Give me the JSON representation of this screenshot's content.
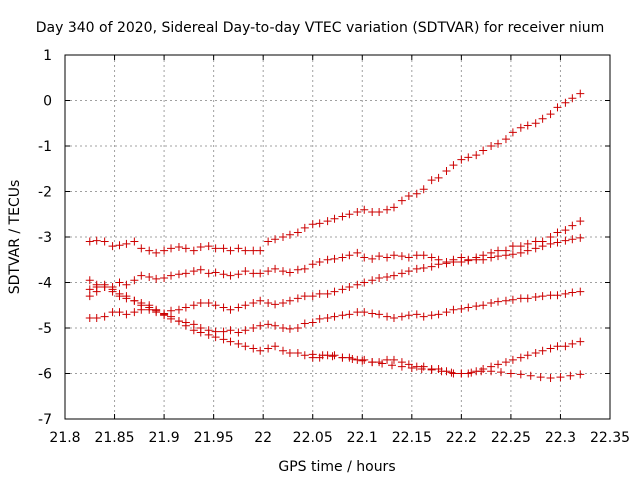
{
  "chart_data": {
    "type": "scatter",
    "title": "Day 340 of 2020, Sidereal Day-to-day VTEC variation (SDTVAR) for receiver nium",
    "xlabel": "GPS time / hours",
    "ylabel": "SDTVAR / TECUs",
    "xlim": [
      21.8,
      22.35
    ],
    "ylim": [
      -7,
      1
    ],
    "xticks": [
      "21.8",
      "21.85",
      "21.9",
      "21.95",
      "22",
      "22.05",
      "22.1",
      "22.15",
      "22.2",
      "22.25",
      "22.3",
      "22.35"
    ],
    "yticks": [
      "-7",
      "-6",
      "-5",
      "-4",
      "-3",
      "-2",
      "-1",
      "0",
      "1"
    ],
    "grid": true,
    "marker": "+",
    "color": "#cc0000",
    "series": [
      {
        "x": [
          21.825,
          21.832,
          21.84,
          21.848,
          21.855,
          21.862,
          21.87,
          21.877,
          21.885,
          21.892,
          21.9,
          21.907,
          21.915,
          21.922,
          21.93,
          21.937,
          21.945,
          21.952,
          21.96,
          21.967,
          21.975,
          21.982,
          21.99,
          21.997,
          22.005,
          22.012,
          22.02,
          22.027,
          22.035,
          22.042,
          22.05,
          22.057,
          22.065,
          22.072,
          22.08,
          22.087,
          22.095,
          22.102,
          22.11,
          22.117,
          22.125,
          22.132,
          22.14,
          22.147,
          22.155,
          22.162,
          22.17,
          22.177,
          22.185,
          22.192,
          22.2,
          22.207,
          22.215,
          22.222,
          22.23,
          22.237,
          22.245,
          22.252,
          22.26,
          22.267,
          22.275,
          22.282,
          22.29,
          22.297,
          22.305,
          22.312,
          22.32
        ],
        "y": [
          -3.1,
          -3.08,
          -3.1,
          -3.2,
          -3.18,
          -3.15,
          -3.1,
          -3.25,
          -3.3,
          -3.35,
          -3.3,
          -3.25,
          -3.22,
          -3.25,
          -3.3,
          -3.22,
          -3.2,
          -3.25,
          -3.25,
          -3.3,
          -3.25,
          -3.3,
          -3.3,
          -3.3,
          -3.1,
          -3.05,
          -3.0,
          -2.95,
          -2.9,
          -2.8,
          -2.72,
          -2.7,
          -2.65,
          -2.6,
          -2.55,
          -2.5,
          -2.45,
          -2.4,
          -2.45,
          -2.45,
          -2.4,
          -2.35,
          -2.2,
          -2.1,
          -2.05,
          -1.95,
          -1.75,
          -1.7,
          -1.55,
          -1.42,
          -1.3,
          -1.25,
          -1.2,
          -1.1,
          -1.0,
          -0.95,
          -0.85,
          -0.7,
          -0.6,
          -0.55,
          -0.5,
          -0.4,
          -0.3,
          -0.15,
          -0.05,
          0.05,
          0.15
        ]
      },
      {
        "x": [
          21.825,
          21.832,
          21.84,
          21.848,
          21.855,
          21.862,
          21.87,
          21.877,
          21.885,
          21.892,
          21.9,
          21.907,
          21.915,
          21.922,
          21.93,
          21.937,
          21.945,
          21.952,
          21.96,
          21.967,
          21.975,
          21.982,
          21.99,
          21.997,
          22.005,
          22.012,
          22.02,
          22.027,
          22.035,
          22.042,
          22.05,
          22.057,
          22.065,
          22.072,
          22.08,
          22.087,
          22.095,
          22.102,
          22.11,
          22.117,
          22.125,
          22.132,
          22.14,
          22.147,
          22.155,
          22.162,
          22.17,
          22.177,
          22.185,
          22.192,
          22.2,
          22.207,
          22.215,
          22.222,
          22.23,
          22.237,
          22.245,
          22.252,
          22.26,
          22.267,
          22.275,
          22.282,
          22.29,
          22.297,
          22.305,
          22.312,
          22.32
        ],
        "y": [
          -4.15,
          -4.1,
          -4.05,
          -4.1,
          -4.0,
          -4.05,
          -3.95,
          -3.85,
          -3.88,
          -3.92,
          -3.9,
          -3.85,
          -3.82,
          -3.8,
          -3.75,
          -3.72,
          -3.8,
          -3.78,
          -3.82,
          -3.85,
          -3.82,
          -3.75,
          -3.8,
          -3.8,
          -3.75,
          -3.7,
          -3.75,
          -3.78,
          -3.72,
          -3.7,
          -3.6,
          -3.55,
          -3.5,
          -3.48,
          -3.45,
          -3.4,
          -3.35,
          -3.45,
          -3.48,
          -3.42,
          -3.45,
          -3.4,
          -3.42,
          -3.45,
          -3.4,
          -3.4,
          -3.45,
          -3.5,
          -3.55,
          -3.5,
          -3.45,
          -3.5,
          -3.45,
          -3.4,
          -3.35,
          -3.3,
          -3.3,
          -3.2,
          -3.2,
          -3.15,
          -3.1,
          -3.1,
          -3.0,
          -2.9,
          -2.85,
          -2.75,
          -2.65
        ]
      },
      {
        "x": [
          21.825,
          21.832,
          21.84,
          21.848,
          21.855,
          21.862,
          21.87,
          21.877,
          21.885,
          21.892,
          21.9,
          21.907,
          21.915,
          21.922,
          21.93,
          21.937,
          21.945,
          21.952,
          21.96,
          21.967,
          21.975,
          21.982,
          21.99,
          21.997,
          22.005,
          22.012,
          22.02,
          22.027,
          22.035,
          22.042,
          22.05,
          22.057,
          22.065,
          22.072,
          22.08,
          22.087,
          22.095,
          22.102,
          22.11,
          22.117,
          22.125,
          22.132,
          22.14,
          22.147,
          22.155,
          22.162,
          22.17,
          22.177,
          22.185,
          22.192,
          22.2,
          22.207,
          22.215,
          22.222,
          22.23,
          22.237,
          22.245,
          22.252,
          22.26,
          22.267,
          22.275,
          22.282,
          22.29,
          22.297,
          22.305,
          22.312,
          22.32
        ],
        "y": [
          -4.3,
          -4.2,
          -4.1,
          -4.2,
          -4.3,
          -4.35,
          -4.4,
          -4.45,
          -4.5,
          -4.6,
          -4.68,
          -4.62,
          -4.6,
          -4.55,
          -4.5,
          -4.45,
          -4.45,
          -4.5,
          -4.55,
          -4.6,
          -4.55,
          -4.5,
          -4.45,
          -4.4,
          -4.45,
          -4.48,
          -4.45,
          -4.4,
          -4.35,
          -4.3,
          -4.3,
          -4.25,
          -4.25,
          -4.2,
          -4.15,
          -4.1,
          -4.05,
          -4.0,
          -3.95,
          -3.9,
          -3.88,
          -3.85,
          -3.8,
          -3.75,
          -3.7,
          -3.68,
          -3.65,
          -3.6,
          -3.58,
          -3.55,
          -3.55,
          -3.52,
          -3.5,
          -3.5,
          -3.45,
          -3.42,
          -3.4,
          -3.38,
          -3.35,
          -3.3,
          -3.25,
          -3.2,
          -3.15,
          -3.12,
          -3.08,
          -3.05,
          -3.02
        ]
      },
      {
        "x": [
          21.825,
          21.832,
          21.84,
          21.848,
          21.855,
          21.862,
          21.87,
          21.877,
          21.885,
          21.892,
          21.9,
          21.907,
          21.915,
          21.922,
          21.93,
          21.937,
          21.945,
          21.952,
          21.96,
          21.967,
          21.975,
          21.982,
          21.99,
          21.997,
          22.005,
          22.012,
          22.02,
          22.027,
          22.035,
          22.042,
          22.05,
          22.057,
          22.065,
          22.072,
          22.08,
          22.087,
          22.095,
          22.102,
          22.11,
          22.117,
          22.125,
          22.132,
          22.14,
          22.147,
          22.155,
          22.162,
          22.17,
          22.177,
          22.185,
          22.192,
          22.2,
          22.207,
          22.215,
          22.222,
          22.23,
          22.237,
          22.245,
          22.252,
          22.26,
          22.267,
          22.275,
          22.282,
          22.29,
          22.297,
          22.305,
          22.312,
          22.32
        ],
        "y": [
          -4.78,
          -4.78,
          -4.75,
          -4.65,
          -4.65,
          -4.7,
          -4.65,
          -4.6,
          -4.55,
          -4.62,
          -4.72,
          -4.8,
          -4.85,
          -4.88,
          -4.92,
          -5.0,
          -5.05,
          -5.08,
          -5.08,
          -5.05,
          -5.1,
          -5.05,
          -5.0,
          -4.95,
          -4.92,
          -4.95,
          -5.0,
          -5.02,
          -5.0,
          -4.9,
          -4.88,
          -4.8,
          -4.78,
          -4.75,
          -4.72,
          -4.7,
          -4.65,
          -4.65,
          -4.68,
          -4.7,
          -4.75,
          -4.78,
          -4.75,
          -4.72,
          -4.7,
          -4.75,
          -4.72,
          -4.7,
          -4.65,
          -4.6,
          -4.58,
          -4.55,
          -4.52,
          -4.5,
          -4.45,
          -4.42,
          -4.4,
          -4.38,
          -4.35,
          -4.35,
          -4.32,
          -4.3,
          -4.28,
          -4.28,
          -4.25,
          -4.22,
          -4.2
        ]
      },
      {
        "x": [
          21.825,
          21.832,
          21.84,
          21.848,
          21.855,
          21.862,
          21.87,
          21.877,
          21.885,
          21.892,
          21.9,
          21.907,
          21.915,
          21.922,
          21.93,
          21.937,
          21.945,
          21.952,
          21.96,
          21.967,
          21.975,
          21.982,
          21.99,
          21.997,
          22.005,
          22.012,
          22.02,
          22.027,
          22.035,
          22.042,
          22.05,
          22.057,
          22.065,
          22.072,
          22.08,
          22.087,
          22.095,
          22.102,
          22.11,
          22.117,
          22.125,
          22.132,
          22.14,
          22.147,
          22.155,
          22.162,
          22.17,
          22.177,
          22.185,
          22.192,
          22.2,
          22.207,
          22.215,
          22.222,
          22.23,
          22.237,
          22.245,
          22.252,
          22.26,
          22.267,
          22.275,
          22.282,
          22.29,
          22.297,
          22.305,
          22.312,
          22.32
        ],
        "y": [
          -3.95,
          -4.05,
          -4.1,
          -4.15,
          -4.25,
          -4.3,
          -4.4,
          -4.5,
          -4.6,
          -4.65,
          -4.7,
          -4.75,
          -4.85,
          -4.95,
          -5.05,
          -5.1,
          -5.15,
          -5.2,
          -5.25,
          -5.3,
          -5.35,
          -5.4,
          -5.45,
          -5.5,
          -5.45,
          -5.4,
          -5.5,
          -5.55,
          -5.55,
          -5.6,
          -5.65,
          -5.65,
          -5.6,
          -5.6,
          -5.65,
          -5.65,
          -5.7,
          -5.7,
          -5.75,
          -5.75,
          -5.7,
          -5.7,
          -5.75,
          -5.8,
          -5.85,
          -5.85,
          -5.9,
          -5.9,
          -5.95,
          -6.0,
          -6.0,
          -6.0,
          -5.95,
          -5.9,
          -5.85,
          -5.8,
          -5.75,
          -5.7,
          -5.65,
          -5.6,
          -5.55,
          -5.5,
          -5.45,
          -5.4,
          -5.4,
          -5.35,
          -5.3
        ]
      },
      {
        "x": [
          22.05,
          22.06,
          22.07,
          22.08,
          22.09,
          22.1,
          22.11,
          22.12,
          22.13,
          22.14,
          22.15,
          22.16,
          22.17,
          22.18,
          22.19,
          22.2,
          22.21,
          22.22,
          22.23,
          22.24,
          22.25,
          22.26,
          22.27,
          22.28,
          22.29,
          22.3,
          22.31,
          22.32
        ],
        "y": [
          -5.58,
          -5.6,
          -5.62,
          -5.65,
          -5.68,
          -5.72,
          -5.75,
          -5.78,
          -5.82,
          -5.85,
          -5.88,
          -5.9,
          -5.92,
          -5.95,
          -5.98,
          -6.0,
          -5.98,
          -5.95,
          -5.95,
          -5.97,
          -6.0,
          -6.02,
          -6.05,
          -6.08,
          -6.1,
          -6.08,
          -6.05,
          -6.02
        ]
      }
    ]
  }
}
